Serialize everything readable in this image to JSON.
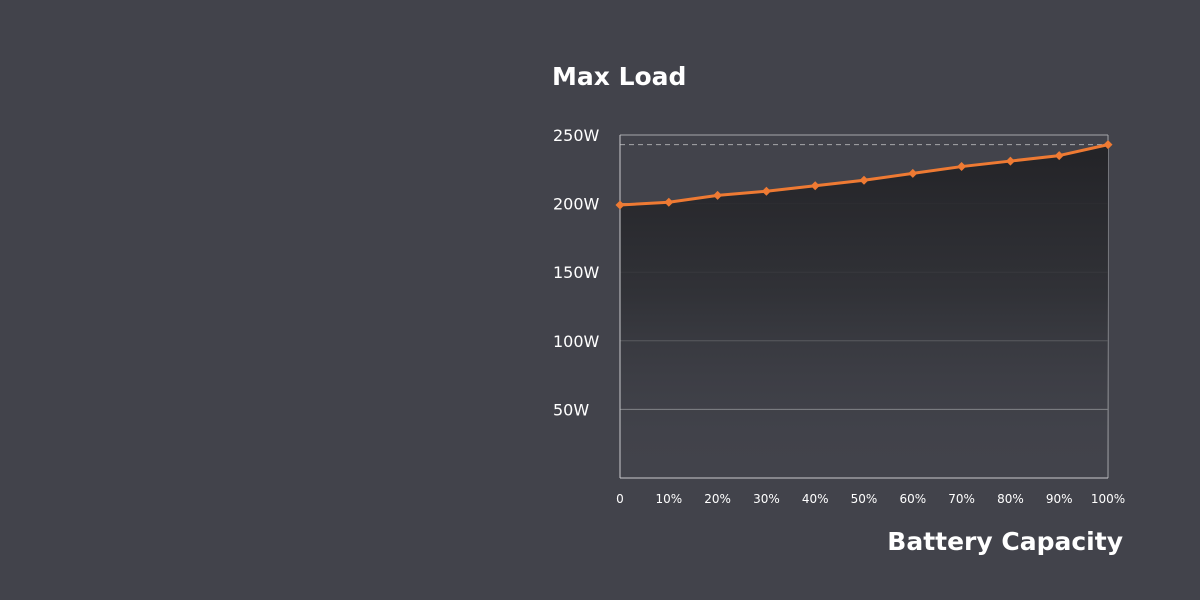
{
  "colors": {
    "background": "#42434b",
    "series": "#ee7a33",
    "grid": "#a6a7ab",
    "axis": "#c9cacd",
    "text": "#ffffff"
  },
  "chart_data": {
    "type": "line",
    "title": "Max Load",
    "xlabel": "Battery Capacity",
    "ylabel": "",
    "x": [
      0,
      10,
      20,
      30,
      40,
      50,
      60,
      70,
      80,
      90,
      100
    ],
    "xtick_labels": [
      "0",
      "10%",
      "20%",
      "30%",
      "40%",
      "50%",
      "60%",
      "70%",
      "80%",
      "90%",
      "100%"
    ],
    "yticks": [
      50,
      100,
      150,
      200,
      250
    ],
    "ytick_labels": [
      "50W",
      "100W",
      "150W",
      "200W",
      "250W"
    ],
    "xlim": [
      0,
      100
    ],
    "ylim": [
      0,
      250
    ],
    "grid": true,
    "reference_line": {
      "value": 243,
      "style": "dashed"
    },
    "series": [
      {
        "values": [
          199,
          201,
          206,
          209,
          213,
          217,
          222,
          227,
          231,
          235,
          243
        ]
      }
    ]
  }
}
